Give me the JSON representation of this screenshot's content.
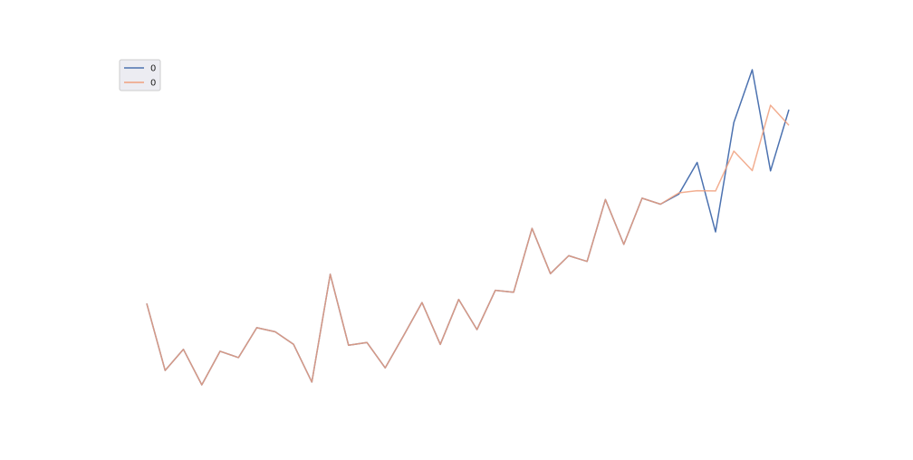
{
  "chart_data": {
    "type": "line",
    "title": "",
    "xlabel": "",
    "ylabel": "",
    "grid": false,
    "legend_placement": "top-left",
    "x": [
      0,
      1,
      2,
      3,
      4,
      5,
      6,
      7,
      8,
      9,
      10,
      11,
      12,
      13,
      14,
      15,
      16,
      17,
      18,
      19,
      20,
      21,
      22,
      23,
      24,
      25,
      26,
      27,
      28,
      29,
      30,
      31,
      32,
      33,
      34,
      35
    ],
    "ylim": [
      0,
      100
    ],
    "series": [
      {
        "name": "0",
        "color": "#4c72b0",
        "values": [
          25.6,
          4.3,
          11.0,
          -0.3,
          10.4,
          8.4,
          17.9,
          16.6,
          12.6,
          0.6,
          34.9,
          12.3,
          13.2,
          5.1,
          15.4,
          25.9,
          12.6,
          26.9,
          17.3,
          29.8,
          29.2,
          49.5,
          35.1,
          40.8,
          39.0,
          58.7,
          44.4,
          59.1,
          57.2,
          60.4,
          70.5,
          48.4,
          83.2,
          100.0,
          67.8,
          87.3
        ]
      },
      {
        "name": "0",
        "color": "#f0a07e",
        "values": [
          25.6,
          4.3,
          11.0,
          -0.3,
          10.4,
          8.4,
          17.9,
          16.6,
          12.6,
          0.6,
          34.9,
          12.3,
          13.2,
          5.1,
          15.4,
          25.9,
          12.6,
          26.9,
          17.3,
          29.8,
          29.2,
          49.5,
          35.1,
          40.8,
          39.0,
          58.7,
          44.4,
          59.1,
          57.2,
          60.8,
          61.5,
          61.4,
          74.1,
          67.9,
          88.7,
          82.3
        ]
      }
    ]
  }
}
